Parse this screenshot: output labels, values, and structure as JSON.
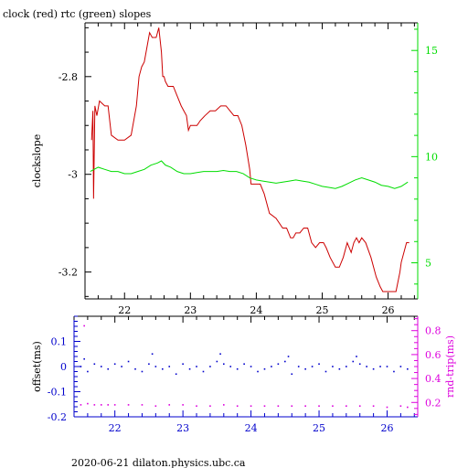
{
  "title": "clock (red) rtc (green) slopes",
  "footer": "2020-06-21  dilaton.physics.ubc.ca",
  "colors": {
    "clock": "#cc0000",
    "rtc": "#00dd00",
    "offset": "#0000cc",
    "rndtrip": "#dd00dd",
    "axis": "#000000"
  },
  "chart_data": [
    {
      "type": "line",
      "xlim": [
        21.4,
        26.45
      ],
      "x_ticks": [
        22,
        23,
        24,
        25,
        26
      ],
      "x_tick_labels": [
        "22",
        "23",
        "24",
        "25",
        "26"
      ],
      "left_axis": {
        "label": "clockslope",
        "ylim": [
          -3.255,
          -2.69
        ],
        "ticks": [
          -3.2,
          -3,
          -2.8
        ],
        "tick_labels": [
          "-3.2",
          "-3",
          "-2.8"
        ]
      },
      "right_axis": {
        "label": "",
        "ylim": [
          3.3,
          16.3
        ],
        "ticks": [
          5,
          10,
          15
        ],
        "tick_labels": [
          "5",
          "10",
          "15"
        ]
      },
      "series": [
        {
          "axis": "left",
          "x": [
            21.5,
            21.52,
            21.53,
            21.55,
            21.58,
            21.62,
            21.7,
            21.75,
            21.8,
            21.9,
            22.0,
            22.1,
            22.18,
            22.22,
            22.26,
            22.3,
            22.34,
            22.38,
            22.42,
            22.48,
            22.52,
            22.56,
            22.58,
            22.6,
            22.62,
            22.66,
            22.7,
            22.74,
            22.8,
            22.86,
            22.9,
            22.94,
            22.97,
            23.0,
            23.05,
            23.1,
            23.15,
            23.22,
            23.3,
            23.38,
            23.46,
            23.54,
            23.6,
            23.66,
            23.72,
            23.78,
            23.84,
            23.9,
            23.92,
            23.96,
            24.0,
            24.06,
            24.12,
            24.2,
            24.3,
            24.4,
            24.46,
            24.52,
            24.56,
            24.6,
            24.66,
            24.72,
            24.78,
            24.84,
            24.9,
            24.96,
            25.02,
            25.06,
            25.12,
            25.2,
            25.26,
            25.32,
            25.38,
            25.44,
            25.48,
            25.52,
            25.56,
            25.6,
            25.66,
            25.74,
            25.82,
            25.88,
            25.92,
            25.96,
            26.0,
            26.06,
            26.12,
            26.18,
            26.2,
            26.24,
            26.28,
            26.32
          ],
          "y": [
            -2.93,
            -2.87,
            -3.05,
            -2.86,
            -2.88,
            -2.85,
            -2.86,
            -2.86,
            -2.92,
            -2.93,
            -2.93,
            -2.92,
            -2.86,
            -2.8,
            -2.78,
            -2.77,
            -2.74,
            -2.71,
            -2.72,
            -2.72,
            -2.7,
            -2.75,
            -2.8,
            -2.8,
            -2.81,
            -2.82,
            -2.82,
            -2.82,
            -2.84,
            -2.86,
            -2.87,
            -2.88,
            -2.91,
            -2.9,
            -2.9,
            -2.9,
            -2.89,
            -2.88,
            -2.87,
            -2.87,
            -2.86,
            -2.86,
            -2.87,
            -2.88,
            -2.88,
            -2.9,
            -2.94,
            -2.99,
            -3.02,
            -3.02,
            -3.02,
            -3.02,
            -3.04,
            -3.08,
            -3.09,
            -3.11,
            -3.11,
            -3.13,
            -3.13,
            -3.12,
            -3.12,
            -3.11,
            -3.11,
            -3.14,
            -3.15,
            -3.14,
            -3.14,
            -3.15,
            -3.17,
            -3.19,
            -3.19,
            -3.17,
            -3.14,
            -3.16,
            -3.14,
            -3.13,
            -3.14,
            -3.13,
            -3.14,
            -3.17,
            -3.21,
            -3.23,
            -3.24,
            -3.24,
            -3.24,
            -3.24,
            -3.24,
            -3.2,
            -3.18,
            -3.16,
            -3.14,
            -3.14
          ]
        },
        {
          "axis": "right",
          "x": [
            21.48,
            21.6,
            21.7,
            21.8,
            21.9,
            22.0,
            22.1,
            22.2,
            22.3,
            22.4,
            22.5,
            22.56,
            22.62,
            22.7,
            22.8,
            22.9,
            23.0,
            23.1,
            23.2,
            23.3,
            23.4,
            23.5,
            23.6,
            23.7,
            23.8,
            23.9,
            24.0,
            24.1,
            24.2,
            24.3,
            24.4,
            24.5,
            24.6,
            24.7,
            24.8,
            24.9,
            25.0,
            25.1,
            25.2,
            25.3,
            25.4,
            25.5,
            25.6,
            25.7,
            25.8,
            25.9,
            26.0,
            26.1,
            26.2,
            26.3
          ],
          "y": [
            9.3,
            9.5,
            9.4,
            9.3,
            9.3,
            9.2,
            9.2,
            9.3,
            9.4,
            9.6,
            9.7,
            9.8,
            9.6,
            9.5,
            9.3,
            9.2,
            9.2,
            9.25,
            9.3,
            9.3,
            9.3,
            9.35,
            9.3,
            9.3,
            9.2,
            9.0,
            8.9,
            8.85,
            8.8,
            8.75,
            8.8,
            8.85,
            8.9,
            8.85,
            8.8,
            8.7,
            8.6,
            8.55,
            8.5,
            8.6,
            8.75,
            8.9,
            9.0,
            8.9,
            8.8,
            8.65,
            8.6,
            8.5,
            8.6,
            8.8
          ]
        }
      ]
    },
    {
      "type": "scatter",
      "xlim": [
        21.4,
        26.45
      ],
      "x_ticks": [
        22,
        23,
        24,
        25,
        26
      ],
      "x_tick_labels": [
        "22",
        "23",
        "24",
        "25",
        "26"
      ],
      "left_axis": {
        "label": "offset(ms)",
        "ylim": [
          -0.2,
          0.2
        ],
        "ticks": [
          -0.2,
          -0.1,
          0,
          0.1
        ],
        "tick_labels": [
          "-0.2",
          "-0.1",
          "0",
          "0.1"
        ]
      },
      "right_axis": {
        "label": "rnd-trip(ms)",
        "ylim": [
          0.08,
          0.92
        ],
        "ticks": [
          0.2,
          0.4,
          0.6,
          0.8
        ],
        "tick_labels": [
          "0.2",
          "0.4",
          "0.6",
          "0.8"
        ]
      },
      "series": [
        {
          "axis": "left",
          "x": [
            21.5,
            21.55,
            21.6,
            21.7,
            21.8,
            21.9,
            22.0,
            22.1,
            22.2,
            22.3,
            22.4,
            22.5,
            22.55,
            22.6,
            22.7,
            22.8,
            22.9,
            23.0,
            23.1,
            23.2,
            23.3,
            23.4,
            23.5,
            23.55,
            23.6,
            23.7,
            23.8,
            23.9,
            24.0,
            24.1,
            24.2,
            24.3,
            24.4,
            24.5,
            24.55,
            24.6,
            24.7,
            24.8,
            24.9,
            25.0,
            25.1,
            25.2,
            25.3,
            25.4,
            25.5,
            25.55,
            25.6,
            25.7,
            25.8,
            25.9,
            26.0,
            26.1,
            26.2,
            26.3
          ],
          "y": [
            0.0,
            0.03,
            -0.02,
            0.01,
            0.0,
            -0.01,
            0.01,
            0.0,
            0.02,
            -0.01,
            -0.02,
            0.01,
            0.05,
            0.0,
            -0.01,
            0.0,
            -0.03,
            0.01,
            -0.01,
            0.0,
            -0.02,
            0.0,
            0.02,
            0.05,
            0.01,
            0.0,
            -0.01,
            0.01,
            0.0,
            -0.02,
            -0.01,
            0.0,
            0.01,
            0.02,
            0.04,
            -0.03,
            0.0,
            -0.01,
            0.0,
            0.01,
            -0.02,
            0.0,
            -0.01,
            0.0,
            0.02,
            0.04,
            0.01,
            0.0,
            -0.01,
            0.0,
            0.0,
            -0.02,
            0.0,
            -0.01
          ]
        },
        {
          "axis": "right",
          "x": [
            21.5,
            21.55,
            21.6,
            21.7,
            21.8,
            21.9,
            22.0,
            22.2,
            22.4,
            22.6,
            22.8,
            23.0,
            23.2,
            23.4,
            23.6,
            23.8,
            24.0,
            24.2,
            24.4,
            24.6,
            24.8,
            25.0,
            25.2,
            25.4,
            25.6,
            25.8,
            26.0,
            26.2,
            26.3
          ],
          "y": [
            0.18,
            0.84,
            0.19,
            0.18,
            0.18,
            0.18,
            0.18,
            0.18,
            0.18,
            0.17,
            0.18,
            0.18,
            0.17,
            0.17,
            0.18,
            0.17,
            0.17,
            0.17,
            0.17,
            0.17,
            0.17,
            0.17,
            0.17,
            0.17,
            0.17,
            0.17,
            0.16,
            0.17,
            0.16
          ]
        }
      ]
    }
  ]
}
